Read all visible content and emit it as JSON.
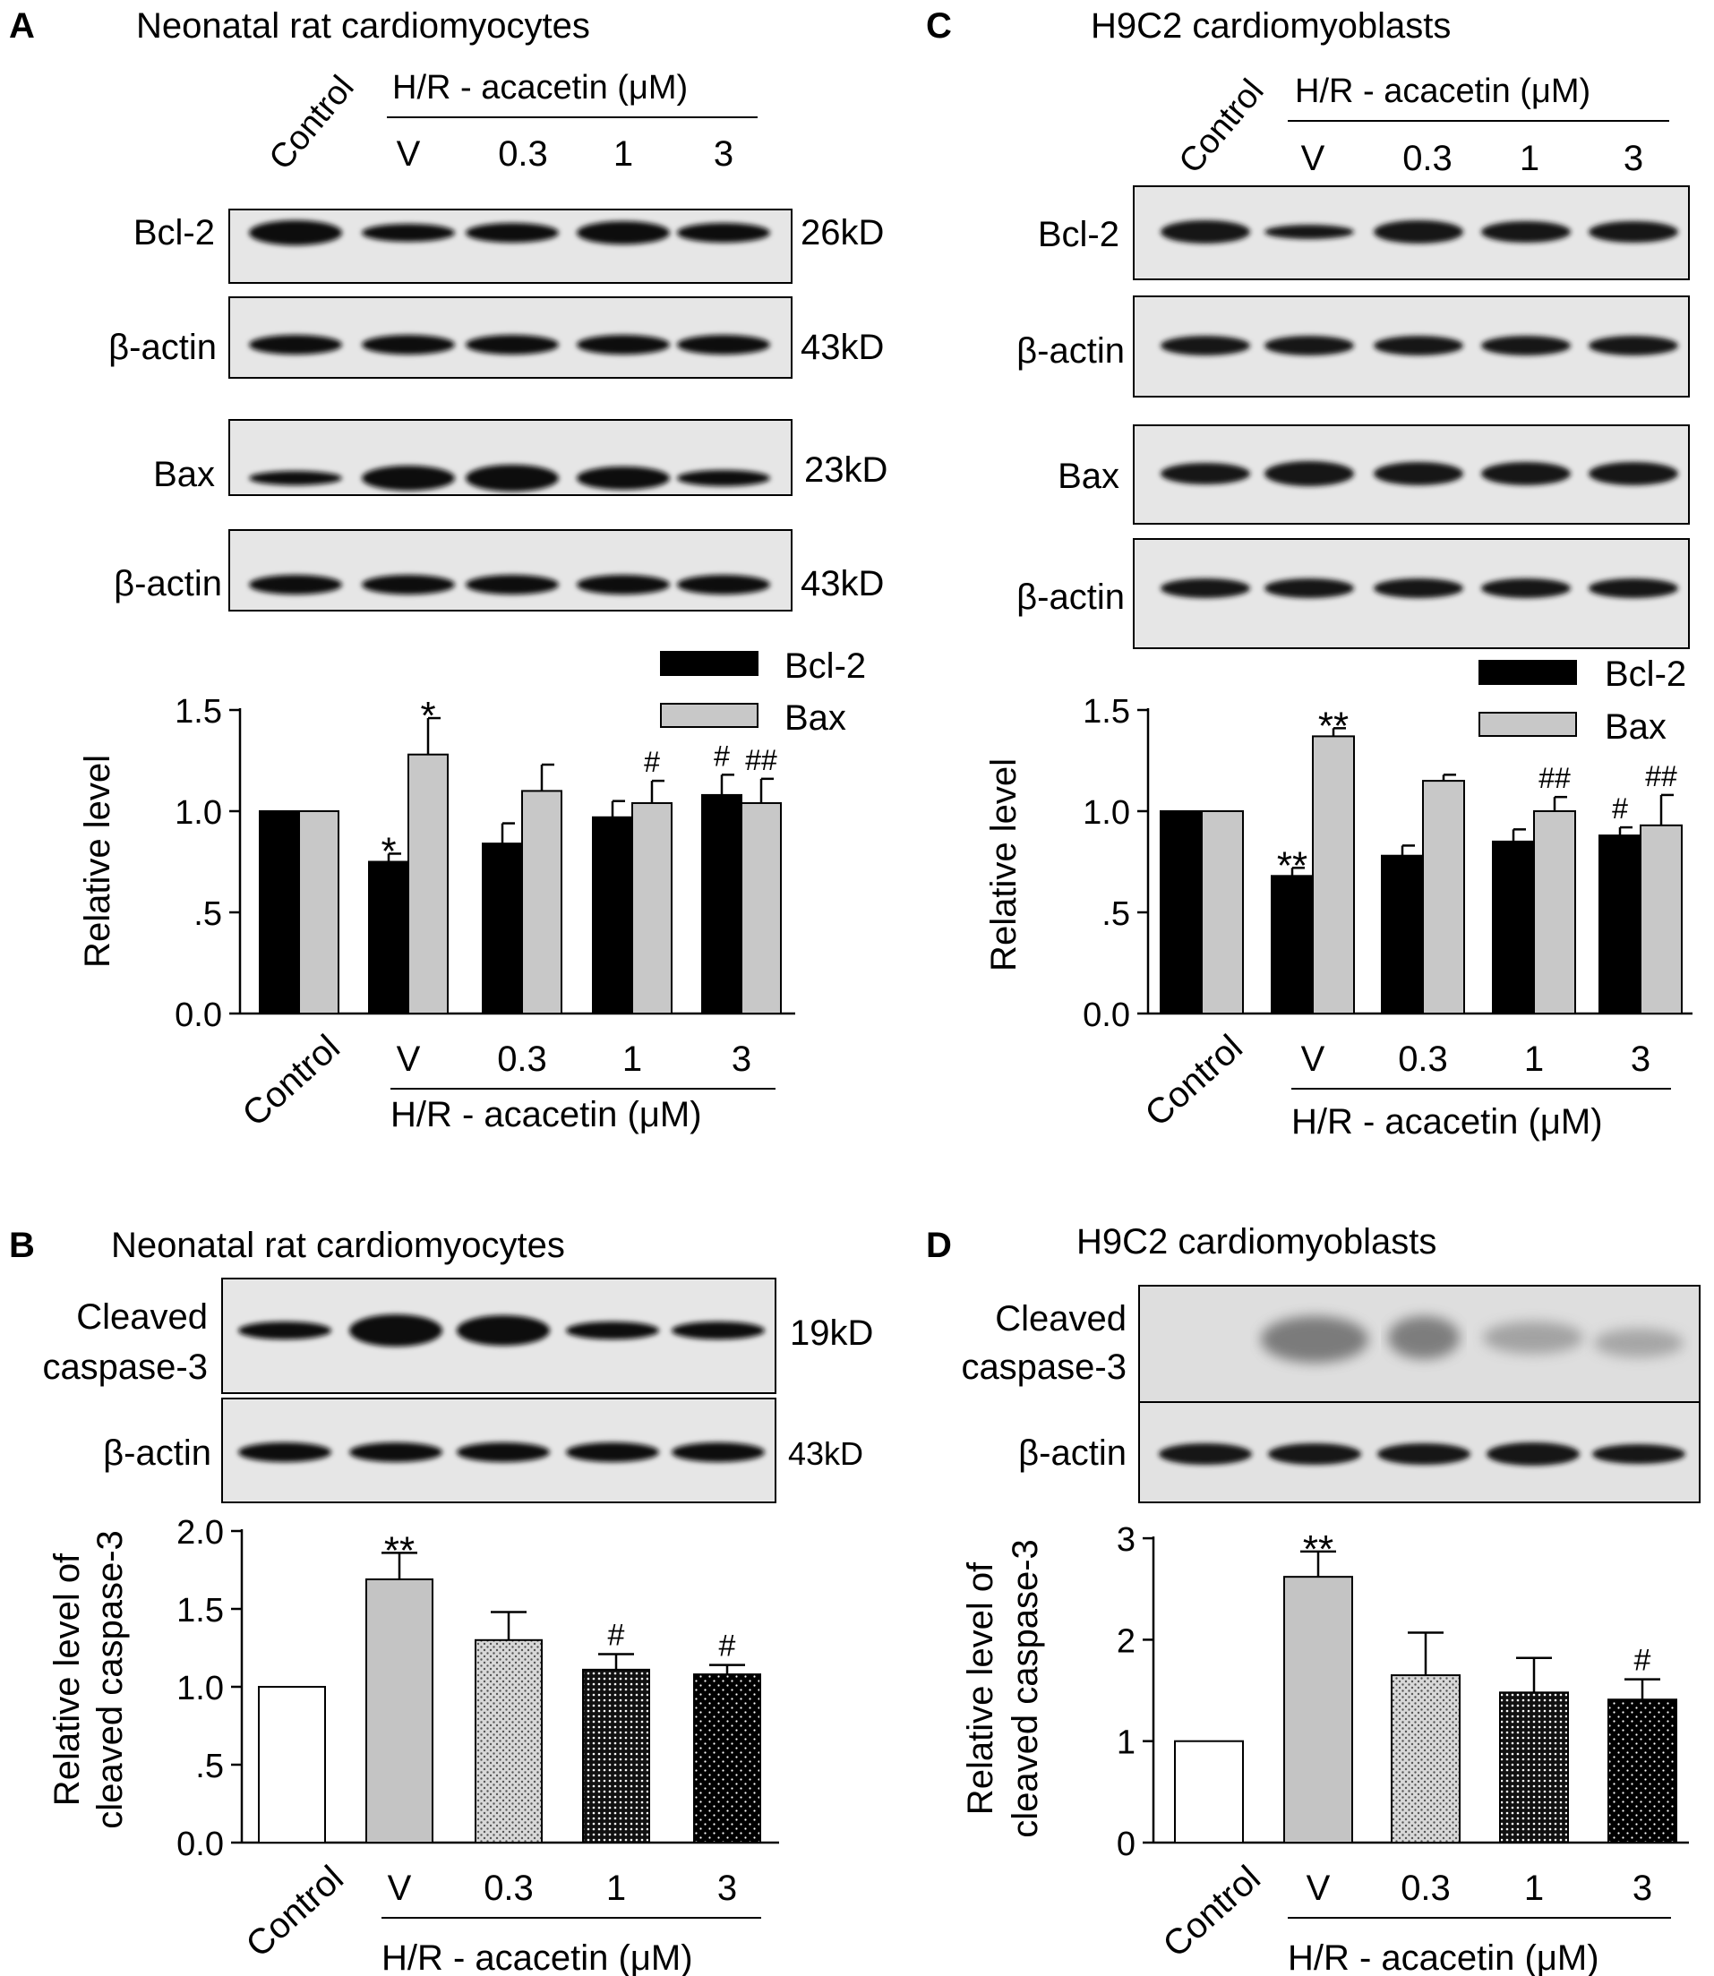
{
  "chart_data": [
    {
      "panel_letter": "A",
      "title": "Neonatal rat cardiomyocytes",
      "type": "bar",
      "blot": {
        "lane_labels": [
          "Control",
          "V",
          "0.3",
          "1",
          "3"
        ],
        "group_label": "H/R - acacetin (μM)",
        "rows": [
          {
            "label": "Bcl-2",
            "size": "26kD"
          },
          {
            "label": "β-actin",
            "size": "43kD"
          },
          {
            "label": "Bax",
            "size": "23kD"
          },
          {
            "label": "β-actin",
            "size": "43kD"
          }
        ]
      },
      "categories": [
        "Control",
        "V",
        "0.3",
        "1",
        "3"
      ],
      "x_group_label": "H/R - acacetin (μM)",
      "ylabel": "Relative level",
      "ylim": [
        0,
        1.5
      ],
      "yticks": [
        "0.0",
        ".5",
        "1.0",
        "1.5"
      ],
      "series": [
        {
          "name": "Bcl-2",
          "color": "#000000",
          "values": [
            1.0,
            0.75,
            0.84,
            0.97,
            1.08
          ],
          "errors": [
            0,
            0.04,
            0.1,
            0.08,
            0.1
          ],
          "marks": [
            "",
            "*",
            "",
            "",
            "#"
          ]
        },
        {
          "name": "Bax",
          "color": "#c8c8c8",
          "values": [
            1.0,
            1.28,
            1.1,
            1.04,
            1.04
          ],
          "errors": [
            0,
            0.18,
            0.13,
            0.11,
            0.12
          ],
          "marks": [
            "",
            "*",
            "",
            "#",
            "##"
          ]
        }
      ],
      "legend": "top-right"
    },
    {
      "panel_letter": "C",
      "title": "H9C2 cardiomyoblasts",
      "type": "bar",
      "blot": {
        "lane_labels": [
          "Control",
          "V",
          "0.3",
          "1",
          "3"
        ],
        "group_label": "H/R - acacetin (μM)",
        "rows": [
          {
            "label": "Bcl-2",
            "size": ""
          },
          {
            "label": "β-actin",
            "size": ""
          },
          {
            "label": "Bax",
            "size": ""
          },
          {
            "label": "β-actin",
            "size": ""
          }
        ]
      },
      "categories": [
        "Control",
        "V",
        "0.3",
        "1",
        "3"
      ],
      "x_group_label": "H/R - acacetin (μM)",
      "ylabel": "Relative level",
      "ylim": [
        0,
        1.5
      ],
      "yticks": [
        "0.0",
        ".5",
        "1.0",
        "1.5"
      ],
      "series": [
        {
          "name": "Bcl-2",
          "color": "#000000",
          "values": [
            1.0,
            0.68,
            0.78,
            0.85,
            0.88
          ],
          "errors": [
            0,
            0.04,
            0.05,
            0.06,
            0.04
          ],
          "marks": [
            "",
            "**",
            "",
            "",
            "#"
          ]
        },
        {
          "name": "Bax",
          "color": "#c8c8c8",
          "values": [
            1.0,
            1.37,
            1.15,
            1.0,
            0.93
          ],
          "errors": [
            0,
            0.04,
            0.03,
            0.07,
            0.15
          ],
          "marks": [
            "",
            "**",
            "",
            "##",
            "##"
          ]
        }
      ],
      "legend": "top-right"
    },
    {
      "panel_letter": "B",
      "title": "Neonatal rat cardiomyocytes",
      "type": "bar",
      "blot": {
        "rows": [
          {
            "label_line1": "Cleaved",
            "label_line2": "caspase-3",
            "size": "19kD"
          },
          {
            "label_line1": "β-actin",
            "label_line2": "",
            "size": "43kD"
          }
        ]
      },
      "categories": [
        "Control",
        "V",
        "0.3",
        "1",
        "3"
      ],
      "x_group_label": "H/R - acacetin (μM)",
      "ylabel_line1": "Relative level of",
      "ylabel_line2": "cleaved caspase-3",
      "ylim": [
        0,
        2.0
      ],
      "yticks": [
        "0.0",
        ".5",
        "1.0",
        "1.5",
        "2.0"
      ],
      "values": [
        1.0,
        1.69,
        1.3,
        1.11,
        1.08
      ],
      "errors": [
        0,
        0.17,
        0.18,
        0.1,
        0.06
      ],
      "marks": [
        "",
        "**",
        "",
        "#",
        "#"
      ],
      "fills": [
        "white",
        "gray",
        "fine-dots",
        "crosshatch",
        "black-dots"
      ]
    },
    {
      "panel_letter": "D",
      "title": "H9C2 cardiomyoblasts",
      "type": "bar",
      "blot": {
        "rows": [
          {
            "label_line1": "Cleaved",
            "label_line2": "caspase-3",
            "size": ""
          },
          {
            "label_line1": "β-actin",
            "label_line2": "",
            "size": ""
          }
        ]
      },
      "categories": [
        "Control",
        "V",
        "0.3",
        "1",
        "3"
      ],
      "x_group_label": "H/R - acacetin (μM)",
      "ylabel_line1": "Relative level of",
      "ylabel_line2": "cleaved caspase-3",
      "ylim": [
        0,
        3
      ],
      "yticks": [
        "0",
        "1",
        "2",
        "3"
      ],
      "values": [
        1.0,
        2.62,
        1.65,
        1.48,
        1.41
      ],
      "errors": [
        0,
        0.25,
        0.42,
        0.34,
        0.2
      ],
      "marks": [
        "",
        "**",
        "",
        "",
        "#"
      ],
      "fills": [
        "white",
        "gray",
        "fine-dots",
        "crosshatch",
        "black-dots"
      ]
    }
  ]
}
